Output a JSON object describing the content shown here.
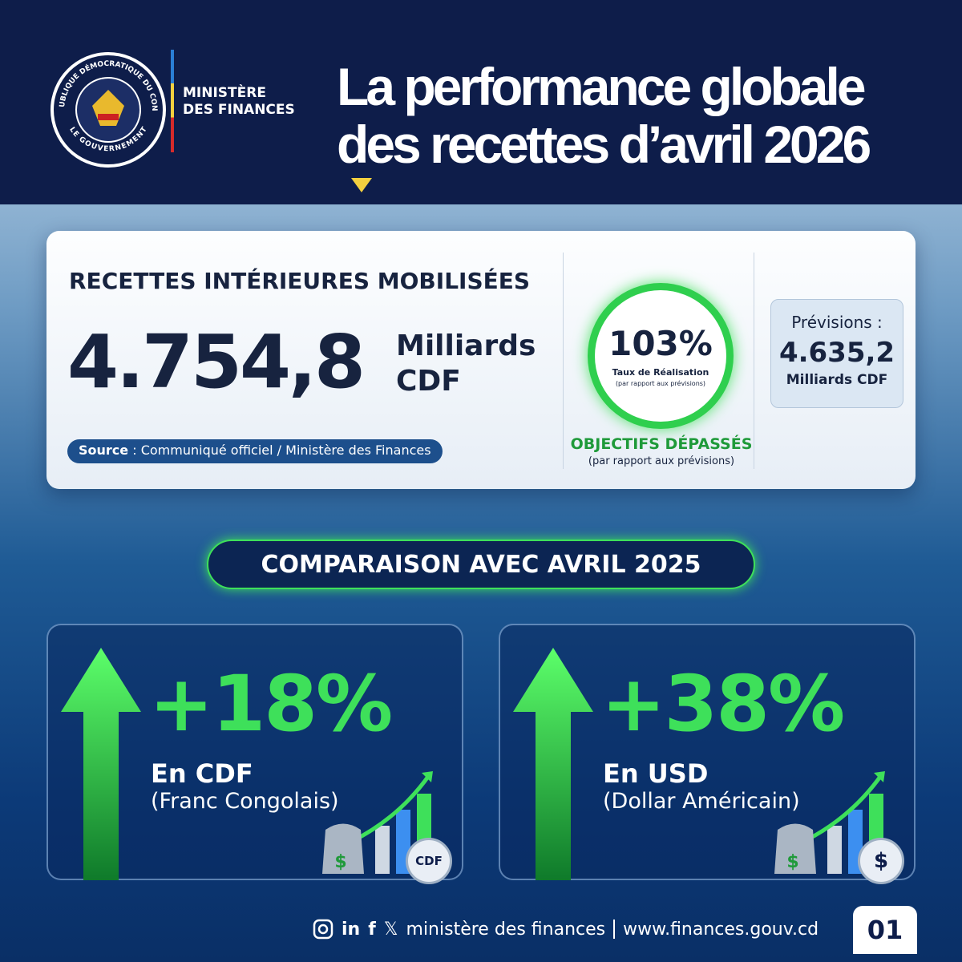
{
  "header": {
    "logo": {
      "ring_top": "RÉPUBLIQUE DÉMOCRATIQUE DU CONGO",
      "ring_bottom": "LE GOUVERNEMENT"
    },
    "ministry": [
      "MINISTÈRE",
      "DES FINANCES"
    ],
    "title": [
      "La performance globale",
      "des recettes d’avril 2026"
    ]
  },
  "main_card": {
    "heading": "RECETTES INTÉRIEURES MOBILISÉES",
    "amount": "4.754,8",
    "unit": [
      "Milliards",
      "CDF"
    ],
    "source": {
      "label": "Source",
      "text": " : Communiqué officiel / Ministère des Finances"
    },
    "rate": {
      "value": "103%",
      "label": "Taux de Réalisation",
      "note": "(par rapport aux prévisions)"
    },
    "status": {
      "label": "OBJECTIFS DÉPASSÉS",
      "note": "(par rapport aux prévisions)"
    },
    "forecast": {
      "label": "Prévisions :",
      "amount": "4.635,2",
      "unit": "Milliards CDF"
    }
  },
  "comparison": {
    "title": "COMPARAISON AVEC AVRIL 2025",
    "items": [
      {
        "change": "+18%",
        "currency": "En CDF",
        "description": "(Franc Congolais)",
        "icons": [
          "$",
          "CDF"
        ]
      },
      {
        "change": "+38%",
        "currency": "En USD",
        "description": "(Dollar Américain)",
        "icons": [
          "$",
          "$"
        ]
      }
    ]
  },
  "footer": {
    "social": [
      "in",
      "f",
      "𝕏"
    ],
    "name": "ministère des finances",
    "website": "www.finances.gouv.cd",
    "page": "01"
  }
}
